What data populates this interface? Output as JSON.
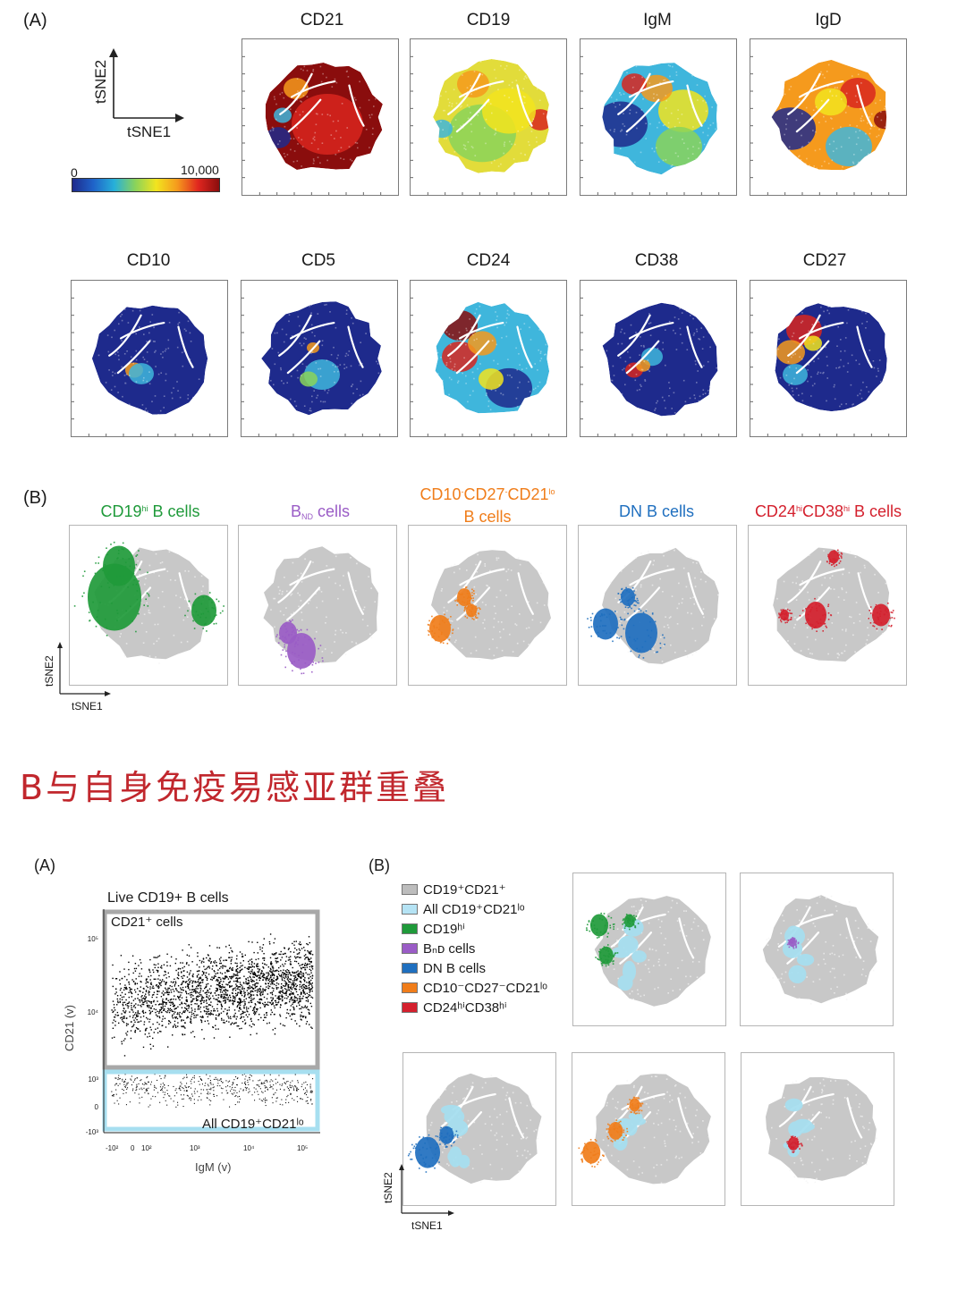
{
  "figure1": {
    "panel_a_label": "(A)",
    "panel_b_label": "(B)",
    "axis": {
      "x": "tSNE1",
      "y": "tSNE2"
    },
    "colorbar": {
      "min": "0",
      "max": "10,000",
      "colors": [
        "#1e2a8c",
        "#1f63c9",
        "#27b0d9",
        "#8ad35a",
        "#f2e41f",
        "#f59a1d",
        "#e0261f",
        "#8a0d0d"
      ]
    },
    "markers_row1": [
      "CD21",
      "CD19",
      "IgM",
      "IgD"
    ],
    "markers_row2": [
      "CD10",
      "CD5",
      "CD24",
      "CD38",
      "CD27"
    ],
    "populations": [
      {
        "main": "CD19",
        "sup": "hi",
        "rest": " B cells",
        "color": "#1f9a3a"
      },
      {
        "main": "B",
        "sub": "ND",
        "rest": " cells",
        "color": "#9a5cc6"
      },
      {
        "line1_a": "CD10",
        "line1_b": "CD27",
        "line1_c": "CD21",
        "sup": "lo",
        "line2": "B cells",
        "color": "#f07d1a"
      },
      {
        "main": "DN B cells",
        "color": "#1f6fbf"
      },
      {
        "a": "CD24",
        "a_sup": "hi",
        "b": "CD38",
        "b_sup": "hi",
        "rest": " B cells",
        "color": "#d4202d"
      }
    ]
  },
  "section_heading": "B与自身免疫易感亚群重叠",
  "figure2": {
    "panel_a_label": "(A)",
    "panel_b_label": "(B)",
    "scatter": {
      "title": "Live CD19+ B cells",
      "gate_upper": "CD21⁺ cells",
      "gate_lower": "All CD19⁺CD21ˡᵒ",
      "ylabel": "CD21 (v)",
      "xlabel": "IgM (v)",
      "yticks": [
        "10⁵",
        "10⁴",
        "10³",
        "0",
        "-10³"
      ],
      "xticks": [
        "-10²",
        "0",
        "10²",
        "10³",
        "10⁴",
        "10⁵"
      ],
      "upper_color": "#a8a8a8",
      "lower_color": "#a7dff0"
    },
    "legend": [
      {
        "label": "CD19⁺CD21⁺",
        "color": "#bdbdbd"
      },
      {
        "label": "All CD19⁺CD21ˡᵒ",
        "color": "#b5e3f4"
      },
      {
        "label": "CD19ʰⁱ",
        "color": "#1f9a3a"
      },
      {
        "label": "Bₙᴅ cells",
        "color": "#9a5cc6"
      },
      {
        "label": "DN B cells",
        "color": "#1f6fbf"
      },
      {
        "label": "CD10⁻CD27⁻CD21ˡᵒ",
        "color": "#f07d1a"
      },
      {
        "label": "CD24ʰⁱCD38ʰⁱ",
        "color": "#d4202d"
      }
    ],
    "axis": {
      "x": "tSNE1",
      "y": "tSNE2"
    }
  }
}
